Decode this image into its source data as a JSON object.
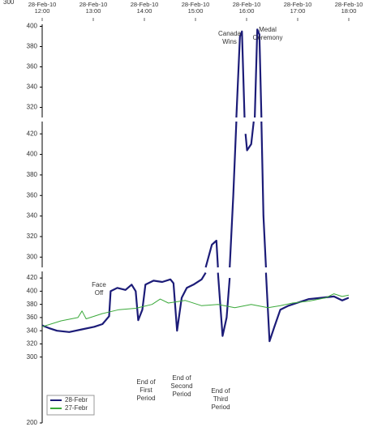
{
  "top_cut_tick": 300,
  "chart_data": [
    {
      "type": "line",
      "xlim": [
        12,
        18
      ],
      "xticks": [
        {
          "value": 12,
          "label": "28-Feb-10 12:00"
        },
        {
          "value": 13,
          "label": "28-Feb-10 13:00"
        },
        {
          "value": 14,
          "label": "28-Feb-10 14:00"
        },
        {
          "value": 15,
          "label": "28-Feb-10 15:00"
        },
        {
          "value": 16,
          "label": "28-Feb-10 16:00"
        },
        {
          "value": 17,
          "label": "28-Feb-10 17:00"
        },
        {
          "value": 18,
          "label": "28-Feb-10 18:00"
        }
      ],
      "ylim": [
        310,
        402
      ],
      "yticks": [
        320,
        340,
        360,
        380,
        400
      ],
      "annotations": [
        "Canada Wins",
        "Medal Ceremony"
      ],
      "series": [
        {
          "color": "#1c1c78",
          "x": [
            15.8,
            15.87,
            15.91,
            15.96,
            16.09,
            16.16,
            16.21,
            16.25,
            16.29
          ],
          "values": [
            310,
            390,
            395,
            310,
            null,
            310,
            397,
            392,
            310
          ]
        }
      ]
    },
    {
      "type": "line",
      "xlim": [
        12,
        18
      ],
      "ylim": [
        290,
        432
      ],
      "yticks": [
        300,
        320,
        340,
        360,
        380,
        400,
        420
      ],
      "series": [
        {
          "color": "#1c1c78",
          "x": [
            15.2,
            15.32,
            15.41,
            15.44,
            15.53,
            15.67,
            15.74,
            15.8,
            15.87,
            15.98,
            16.01,
            16.09,
            16.14,
            16.21,
            16.29,
            16.33,
            16.38
          ],
          "values": [
            290,
            312,
            316,
            290,
            null,
            290,
            360,
            432,
            null,
            420,
            404,
            410,
            432,
            null,
            432,
            340,
            290
          ]
        }
      ]
    },
    {
      "type": "line",
      "xlim": [
        12,
        18
      ],
      "ylim": [
        200,
        430
      ],
      "yticks": [
        200,
        300,
        320,
        340,
        360,
        380,
        400,
        420
      ],
      "legend": "lower left",
      "annotations": [
        "Face Off",
        "End of First Period",
        "End of Second Period",
        "End of Third Period"
      ],
      "series": [
        {
          "name": "28-Febr",
          "color": "#1c1c78",
          "x": [
            12.0,
            12.13,
            12.29,
            12.53,
            12.78,
            13.02,
            13.18,
            13.31,
            13.34,
            13.47,
            13.63,
            13.75,
            13.83,
            13.88,
            13.96,
            14.02,
            14.18,
            14.35,
            14.51,
            14.57,
            14.64,
            14.73,
            14.83,
            14.96,
            15.12,
            15.2,
            15.32,
            15.44,
            15.53,
            15.61,
            15.67,
            15.74,
            16.38,
            16.45,
            16.54,
            16.66,
            16.82,
            16.98,
            17.22,
            17.47,
            17.71,
            17.87,
            18.0
          ],
          "values": [
            348,
            344,
            340,
            338,
            342,
            346,
            350,
            362,
            400,
            405,
            402,
            410,
            400,
            356,
            372,
            410,
            416,
            414,
            418,
            412,
            340,
            390,
            405,
            410,
            418,
            428,
            null,
            428,
            332,
            360,
            420,
            null,
            428,
            324,
            345,
            372,
            378,
            382,
            388,
            390,
            392,
            386,
            390
          ]
        },
        {
          "name": "27-Febr",
          "color": "#3aa93a",
          "x": [
            12.0,
            12.37,
            12.7,
            12.78,
            12.86,
            13.18,
            13.5,
            13.83,
            14.15,
            14.31,
            14.47,
            14.8,
            15.12,
            15.44,
            15.77,
            16.09,
            16.42,
            16.66,
            16.9,
            17.22,
            17.55,
            17.71,
            17.87,
            18.0
          ],
          "values": [
            346,
            355,
            360,
            370,
            358,
            366,
            372,
            374,
            380,
            388,
            382,
            386,
            378,
            380,
            375,
            380,
            375,
            378,
            382,
            385,
            390,
            396,
            392,
            394
          ]
        }
      ]
    }
  ]
}
